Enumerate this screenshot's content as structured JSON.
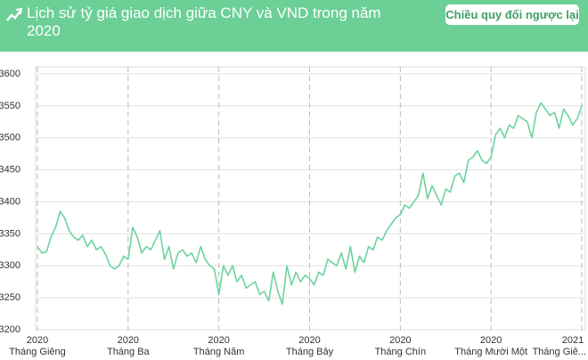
{
  "header": {
    "button": "Chiều quy đổi ngược lại"
  },
  "chart_data": {
    "type": "line",
    "title": "Lịch sử tỷ giá giao dịch giữa CNY và VND trong năm 2020",
    "color": "#6dd39c",
    "grid": true,
    "categories": [
      "Tháng Giêng",
      null,
      null,
      null,
      null,
      null,
      null,
      null,
      null,
      null,
      null,
      null,
      null,
      null,
      null,
      null,
      null,
      null,
      null,
      null,
      "Tháng Ba",
      null,
      null,
      null,
      null,
      null,
      null,
      null,
      null,
      null,
      null,
      null,
      null,
      null,
      null,
      null,
      null,
      null,
      null,
      null,
      "Tháng Năm",
      null,
      null,
      null,
      null,
      null,
      null,
      null,
      null,
      null,
      null,
      null,
      null,
      null,
      null,
      null,
      null,
      null,
      null,
      null,
      "Tháng Bảy",
      null,
      null,
      null,
      null,
      null,
      null,
      null,
      null,
      null,
      null,
      null,
      null,
      null,
      null,
      null,
      null,
      null,
      null,
      null,
      "Tháng Chín",
      null,
      null,
      null,
      null,
      null,
      null,
      null,
      null,
      null,
      null,
      null,
      null,
      null,
      null,
      null,
      null,
      null,
      null,
      null,
      "Tháng Mười Một",
      null,
      null,
      null,
      null,
      null,
      null,
      null,
      null,
      null,
      null,
      null,
      null,
      null,
      null,
      null,
      null,
      null,
      null,
      null,
      "Tháng Giê..."
    ],
    "category_years": [
      "2020",
      null,
      null,
      null,
      null,
      null,
      null,
      null,
      null,
      null,
      null,
      null,
      null,
      null,
      null,
      null,
      null,
      null,
      null,
      null,
      "2020",
      null,
      null,
      null,
      null,
      null,
      null,
      null,
      null,
      null,
      null,
      null,
      null,
      null,
      null,
      null,
      null,
      null,
      null,
      null,
      "2020",
      null,
      null,
      null,
      null,
      null,
      null,
      null,
      null,
      null,
      null,
      null,
      null,
      null,
      null,
      null,
      null,
      null,
      null,
      null,
      "2020",
      null,
      null,
      null,
      null,
      null,
      null,
      null,
      null,
      null,
      null,
      null,
      null,
      null,
      null,
      null,
      null,
      null,
      null,
      null,
      "2020",
      null,
      null,
      null,
      null,
      null,
      null,
      null,
      null,
      null,
      null,
      null,
      null,
      null,
      null,
      null,
      null,
      null,
      null,
      null,
      "2020",
      null,
      null,
      null,
      null,
      null,
      null,
      null,
      null,
      null,
      null,
      null,
      null,
      null,
      null,
      null,
      null,
      null,
      null,
      null,
      "2021"
    ],
    "values": [
      3330,
      3320,
      3322,
      3345,
      3360,
      3385,
      3375,
      3355,
      3345,
      3340,
      3348,
      3330,
      3340,
      3325,
      3330,
      3318,
      3300,
      3295,
      3300,
      3315,
      3310,
      3360,
      3345,
      3320,
      3330,
      3325,
      3340,
      3355,
      3310,
      3330,
      3295,
      3320,
      3325,
      3315,
      3320,
      3305,
      3330,
      3310,
      3300,
      3295,
      3255,
      3300,
      3285,
      3300,
      3275,
      3285,
      3265,
      3270,
      3275,
      3255,
      3260,
      3245,
      3290,
      3260,
      3240,
      3300,
      3270,
      3290,
      3275,
      3285,
      3280,
      3270,
      3290,
      3285,
      3310,
      3305,
      3300,
      3320,
      3295,
      3330,
      3290,
      3315,
      3305,
      3330,
      3325,
      3345,
      3340,
      3355,
      3365,
      3375,
      3380,
      3395,
      3390,
      3400,
      3410,
      3445,
      3405,
      3425,
      3410,
      3395,
      3420,
      3415,
      3440,
      3445,
      3430,
      3465,
      3470,
      3480,
      3465,
      3460,
      3470,
      3505,
      3515,
      3500,
      3520,
      3515,
      3535,
      3530,
      3525,
      3500,
      3540,
      3555,
      3545,
      3535,
      3540,
      3515,
      3545,
      3535,
      3520,
      3530,
      3550
    ],
    "ylim": [
      3200,
      3600
    ],
    "yticks": [
      3200,
      3250,
      3300,
      3350,
      3400,
      3450,
      3500,
      3550,
      3600
    ]
  }
}
